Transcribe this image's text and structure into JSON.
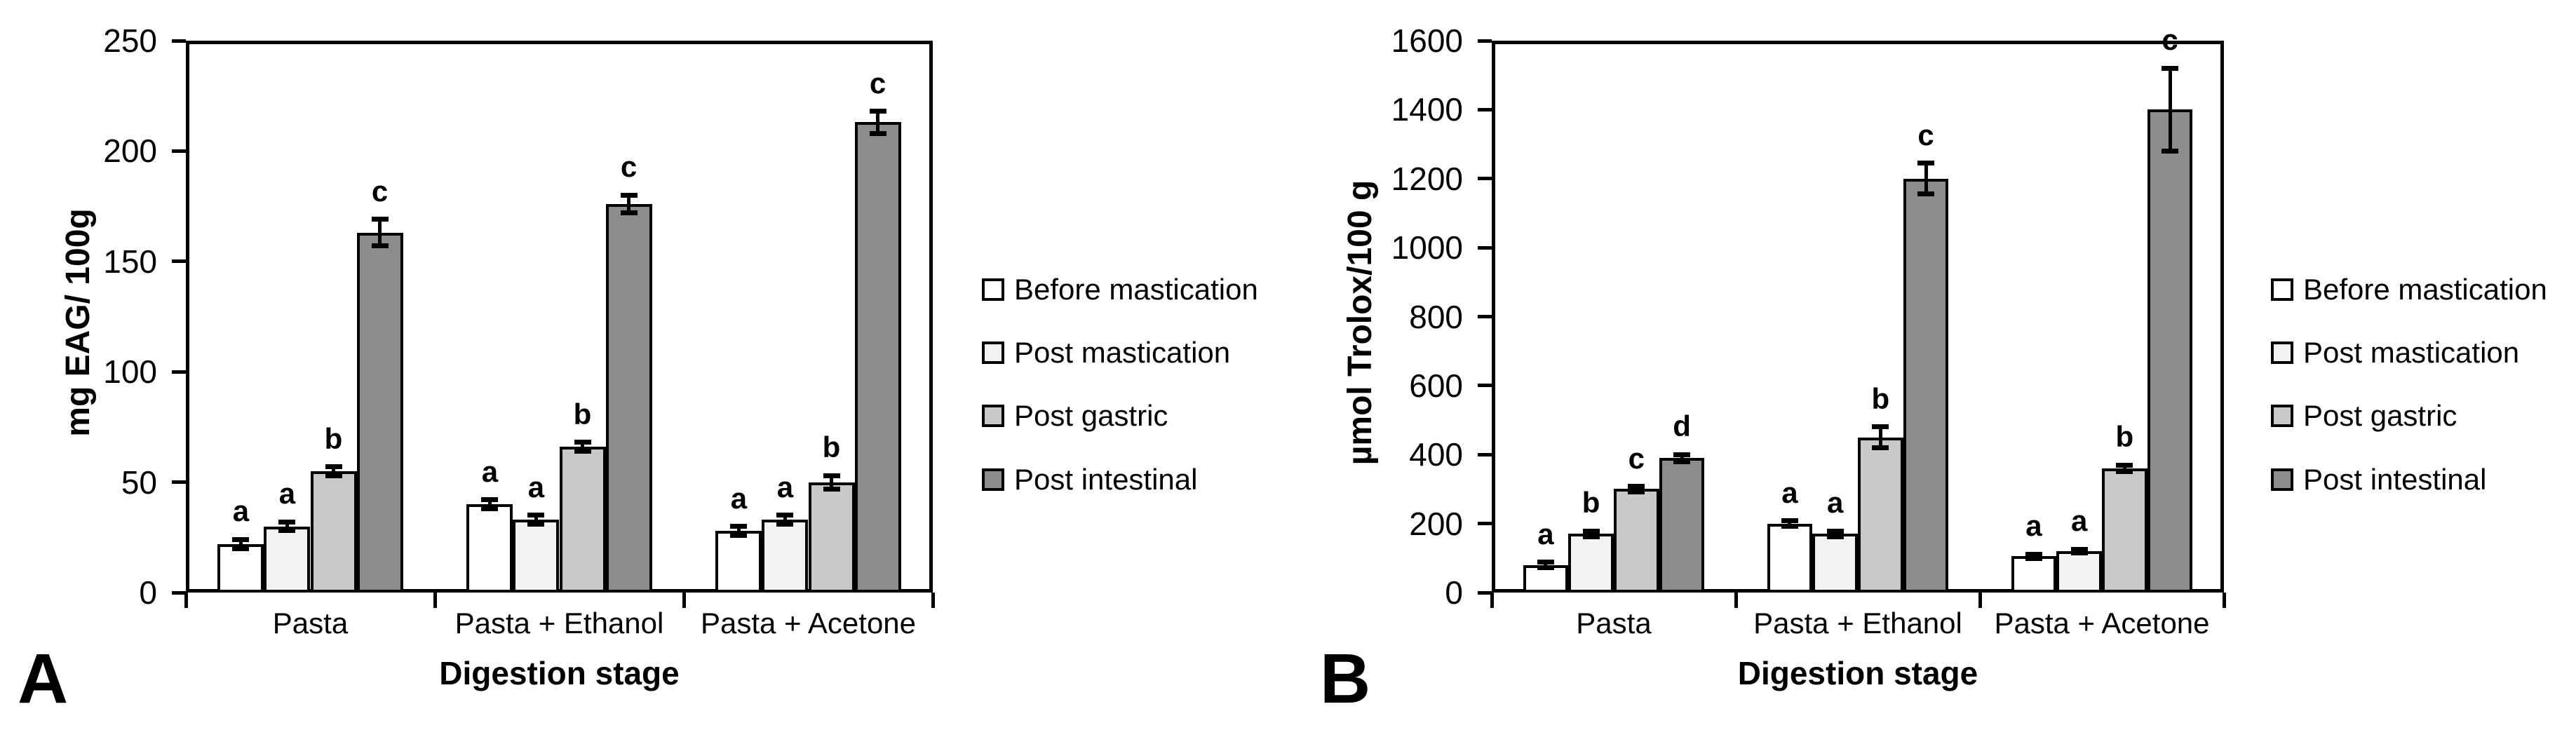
{
  "figure": {
    "panel_labels": [
      "A",
      "B"
    ]
  },
  "chart_data": [
    {
      "panel": "A",
      "type": "bar",
      "title": "",
      "xlabel": "Digestion stage",
      "ylabel": "mg EAG/ 100g",
      "ylim": [
        0,
        250
      ],
      "ytick_step": 50,
      "grid": false,
      "legend_position": "right",
      "categories": [
        "Pasta",
        "Pasta + Ethanol",
        "Pasta + Acetone"
      ],
      "series": [
        {
          "name": "Before mastication",
          "color": "#ffffff",
          "values": [
            22,
            40,
            28
          ],
          "errors": [
            2,
            2,
            2
          ],
          "sig_letters": [
            "a",
            "a",
            "a"
          ]
        },
        {
          "name": "Post mastication",
          "color": "#f2f2f2",
          "values": [
            30,
            33,
            33
          ],
          "errors": [
            2,
            2,
            2
          ],
          "sig_letters": [
            "a",
            "a",
            "a"
          ]
        },
        {
          "name": "Post gastric",
          "color": "#c9c9c9",
          "values": [
            55,
            66,
            50
          ],
          "errors": [
            2,
            2,
            3
          ],
          "sig_letters": [
            "b",
            "b",
            "b"
          ]
        },
        {
          "name": "Post intestinal",
          "color": "#8c8c8c",
          "values": [
            163,
            176,
            213
          ],
          "errors": [
            6,
            4,
            5
          ],
          "sig_letters": [
            "c",
            "c",
            "c"
          ]
        }
      ]
    },
    {
      "panel": "B",
      "type": "bar",
      "title": "",
      "xlabel": "Digestion stage",
      "ylabel": "µmol Trolox/100 g",
      "ylim": [
        0,
        1600
      ],
      "ytick_step": 200,
      "grid": false,
      "legend_position": "right",
      "categories": [
        "Pasta",
        "Pasta + Ethanol",
        "Pasta + Acetone"
      ],
      "series": [
        {
          "name": "Before mastication",
          "color": "#ffffff",
          "values": [
            80,
            200,
            105
          ],
          "errors": [
            8,
            8,
            6
          ],
          "sig_letters": [
            "a",
            "a",
            "a"
          ]
        },
        {
          "name": "Post mastication",
          "color": "#f2f2f2",
          "values": [
            170,
            170,
            120
          ],
          "errors": [
            8,
            8,
            6
          ],
          "sig_letters": [
            "b",
            "a",
            "a"
          ]
        },
        {
          "name": "Post gastric",
          "color": "#c9c9c9",
          "values": [
            300,
            450,
            360
          ],
          "errors": [
            8,
            30,
            10
          ],
          "sig_letters": [
            "c",
            "b",
            "b"
          ]
        },
        {
          "name": "Post intestinal",
          "color": "#8c8c8c",
          "values": [
            390,
            1200,
            1400
          ],
          "errors": [
            10,
            45,
            120
          ],
          "sig_letters": [
            "d",
            "c",
            "c"
          ]
        }
      ]
    }
  ]
}
